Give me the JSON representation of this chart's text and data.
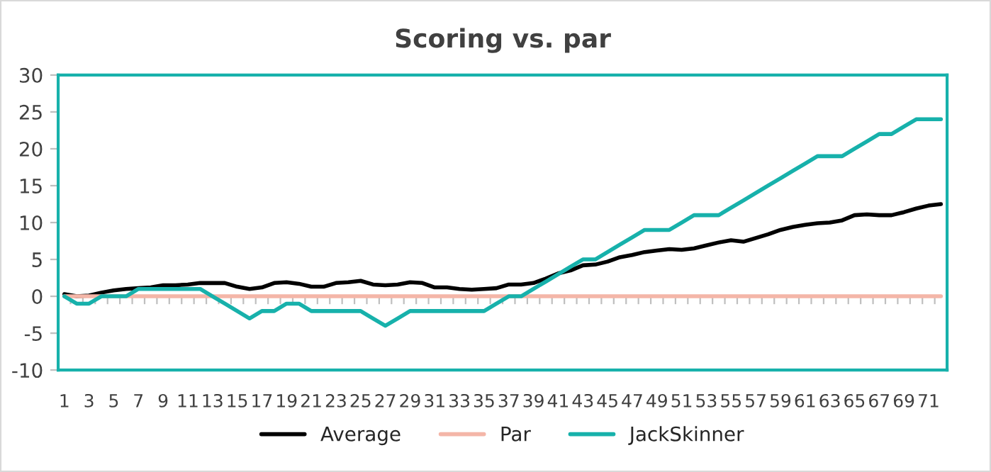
{
  "chart_data": {
    "type": "line",
    "title": "Scoring vs. par",
    "categories": [
      "1",
      null,
      "3",
      null,
      "5",
      null,
      "7",
      null,
      "9",
      null,
      "11",
      null,
      "13",
      null,
      "15",
      null,
      "17",
      null,
      "19",
      null,
      "21",
      null,
      "23",
      null,
      "25",
      null,
      "27",
      null,
      "29",
      null,
      "31",
      null,
      "33",
      null,
      "35",
      null,
      "37",
      null,
      "39",
      null,
      "41",
      null,
      "43",
      null,
      "45",
      null,
      "47",
      null,
      "49",
      null,
      "51",
      null,
      "53",
      null,
      "55",
      null,
      "57",
      null,
      "59",
      null,
      "61",
      null,
      "63",
      null,
      "65",
      null,
      "67",
      null,
      "69",
      null,
      "71",
      null
    ],
    "series": [
      {
        "name": "Average",
        "color": "#000000",
        "values": [
          0.3,
          0.0,
          0.1,
          0.5,
          0.8,
          1.0,
          1.1,
          1.2,
          1.5,
          1.5,
          1.6,
          1.8,
          1.8,
          1.8,
          1.3,
          1.0,
          1.2,
          1.8,
          1.9,
          1.7,
          1.3,
          1.3,
          1.8,
          1.9,
          2.1,
          1.6,
          1.5,
          1.6,
          1.9,
          1.8,
          1.2,
          1.2,
          1.0,
          0.9,
          1.0,
          1.1,
          1.6,
          1.6,
          1.8,
          2.4,
          3.1,
          3.5,
          4.2,
          4.3,
          4.7,
          5.3,
          5.6,
          6.0,
          6.2,
          6.4,
          6.3,
          6.5,
          6.9,
          7.3,
          7.6,
          7.4,
          7.9,
          8.4,
          9.0,
          9.4,
          9.7,
          9.9,
          10.0,
          10.3,
          11.0,
          11.1,
          11.0,
          11.0,
          11.4,
          11.9,
          12.3,
          12.5
        ]
      },
      {
        "name": "Par",
        "color": "#f4b6a8",
        "values": [
          0,
          0,
          0,
          0,
          0,
          0,
          0,
          0,
          0,
          0,
          0,
          0,
          0,
          0,
          0,
          0,
          0,
          0,
          0,
          0,
          0,
          0,
          0,
          0,
          0,
          0,
          0,
          0,
          0,
          0,
          0,
          0,
          0,
          0,
          0,
          0,
          0,
          0,
          0,
          0,
          0,
          0,
          0,
          0,
          0,
          0,
          0,
          0,
          0,
          0,
          0,
          0,
          0,
          0,
          0,
          0,
          0,
          0,
          0,
          0,
          0,
          0,
          0,
          0,
          0,
          0,
          0,
          0,
          0,
          0,
          0,
          0
        ]
      },
      {
        "name": "JackSkinner",
        "color": "#17b1ab",
        "values": [
          0,
          -1,
          -1,
          0,
          0,
          0,
          1,
          1,
          1,
          1,
          1,
          1,
          0,
          -1,
          -2,
          -3,
          -2,
          -2,
          -1,
          -1,
          -2,
          -2,
          -2,
          -2,
          -2,
          -3,
          -4,
          -3,
          -2,
          -2,
          -2,
          -2,
          -2,
          -2,
          -2,
          -1,
          0,
          0,
          1,
          2,
          3,
          4,
          5,
          5,
          6,
          7,
          8,
          9,
          9,
          9,
          10,
          11,
          11,
          11,
          12,
          13,
          14,
          15,
          16,
          17,
          18,
          19,
          19,
          19,
          20,
          21,
          22,
          22,
          23,
          24,
          24,
          24
        ]
      }
    ],
    "ylim": [
      -10,
      30
    ],
    "yticks": [
      -10,
      -5,
      0,
      5,
      10,
      15,
      20,
      25,
      30
    ],
    "legend": "bottom"
  }
}
